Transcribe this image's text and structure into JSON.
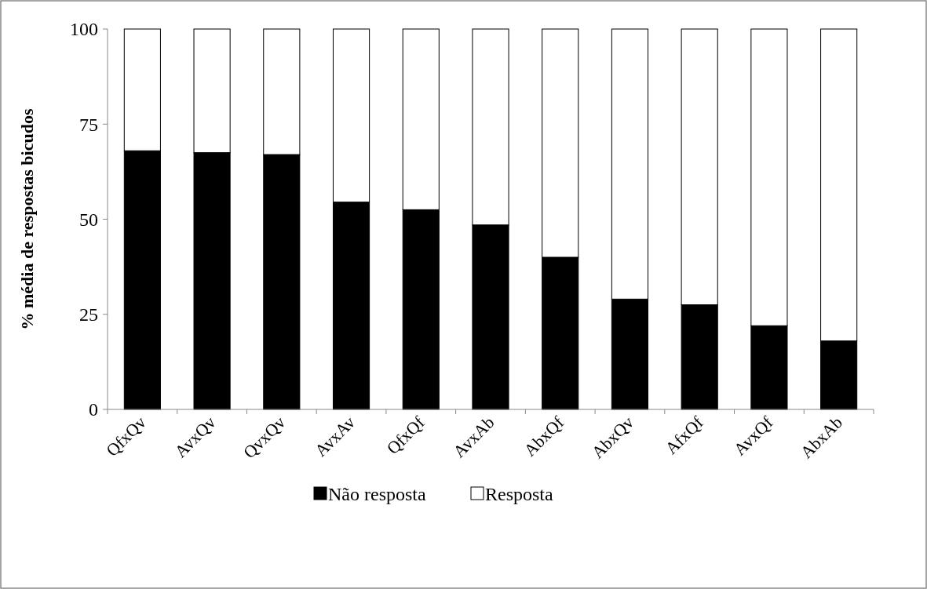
{
  "chart_data": {
    "type": "bar",
    "stacked": true,
    "ylabel": "%  média de respostas bicudos",
    "categories": [
      "QfxQv",
      "AvxQv",
      "QvxQv",
      "AvxAv",
      "QfxQf",
      "AvxAb",
      "AbxQf",
      "AbxQv",
      "AfxQf",
      "AvxQf",
      "AbxAb"
    ],
    "series": [
      {
        "name": "Não resposta",
        "color": "#000000",
        "values": [
          68,
          67.5,
          67,
          54.5,
          52.5,
          48.5,
          40,
          29,
          27.5,
          22,
          18
        ]
      },
      {
        "name": "Resposta",
        "color": "#ffffff",
        "values": [
          32,
          32.5,
          33,
          45.5,
          47.5,
          51.5,
          60,
          71,
          72.5,
          78,
          82
        ]
      }
    ],
    "ylim": [
      0,
      100
    ],
    "yticks": [
      0,
      25,
      50,
      75,
      100
    ],
    "grid": false,
    "legend": "bottom"
  }
}
